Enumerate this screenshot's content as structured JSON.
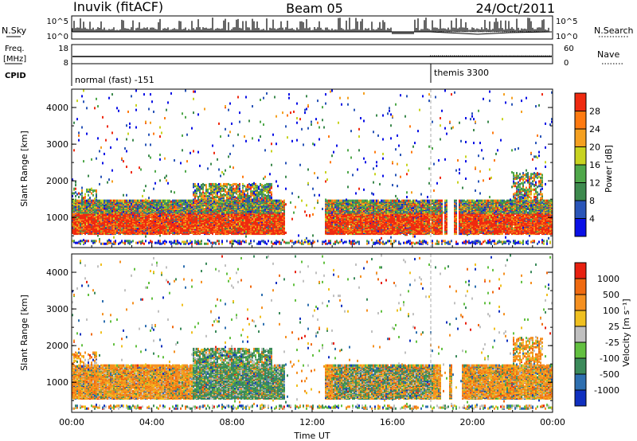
{
  "header": {
    "station": "Inuvik (fitACF)",
    "beam": "Beam 05",
    "date": "24/Oct/2011"
  },
  "top_panels": {
    "nsky_label": "N.Sky",
    "nsearch_label": "N.Search",
    "nsky_ticks": [
      "10^5",
      "10^0"
    ],
    "nsearch_ticks": [
      "10^5",
      "10^0"
    ],
    "freq_label_line1": "Freq.",
    "freq_label_line2": "[MHz]",
    "freq_ticks": [
      "18",
      "8"
    ],
    "nave_label": "Nave",
    "nave_ticks": [
      "60",
      "0"
    ],
    "cpid_label": "CPID",
    "cpid_segments": [
      {
        "label": "normal (fast) -151",
        "start_hour": 0
      },
      {
        "label": "themis 3300",
        "start_hour": 18
      }
    ]
  },
  "chart_data": [
    {
      "type": "heatmap",
      "title": "",
      "ylabel": "Slant Range [km]",
      "xlabel": "",
      "x_range_hours": [
        0,
        24
      ],
      "ylim": [
        180,
        4500
      ],
      "yticks": [
        "1000",
        "2000",
        "3000",
        "4000"
      ],
      "colorbar": {
        "label": "Power [dB]",
        "ticks": [
          "4",
          "8",
          "12",
          "16",
          "20",
          "24",
          "28"
        ],
        "range": [
          0,
          30
        ],
        "colors": [
          "#0a10e6",
          "#2a55b8",
          "#3d8a4e",
          "#4fa84a",
          "#c8d320",
          "#f5a020",
          "#ff7a10",
          "#ef2a10"
        ]
      },
      "note_feature": "strong echoes between ~500 and ~1500 km"
    },
    {
      "type": "heatmap",
      "title": "",
      "ylabel": "Slant Range [km]",
      "xlabel": "Time UT",
      "x_range_hours": [
        0,
        24
      ],
      "ylim": [
        180,
        4500
      ],
      "yticks": [
        "1000",
        "2000",
        "3000",
        "4000"
      ],
      "colorbar": {
        "label": "Velocity [m s⁻¹]",
        "ticks": [
          "1000",
          "500",
          "100",
          "25",
          "-25",
          "-100",
          "-500",
          "-1000"
        ],
        "colors": [
          "#1030c0",
          "#2e6fb0",
          "#3b8a5a",
          "#62c040",
          "#c0c0c0",
          "#f0c020",
          "#f59020",
          "#f06a10",
          "#e82010"
        ]
      }
    }
  ],
  "x_axis": {
    "tick_labels": [
      "00:00",
      "04:00",
      "08:00",
      "12:00",
      "16:00",
      "20:00",
      "00:00"
    ],
    "title": "Time UT"
  }
}
